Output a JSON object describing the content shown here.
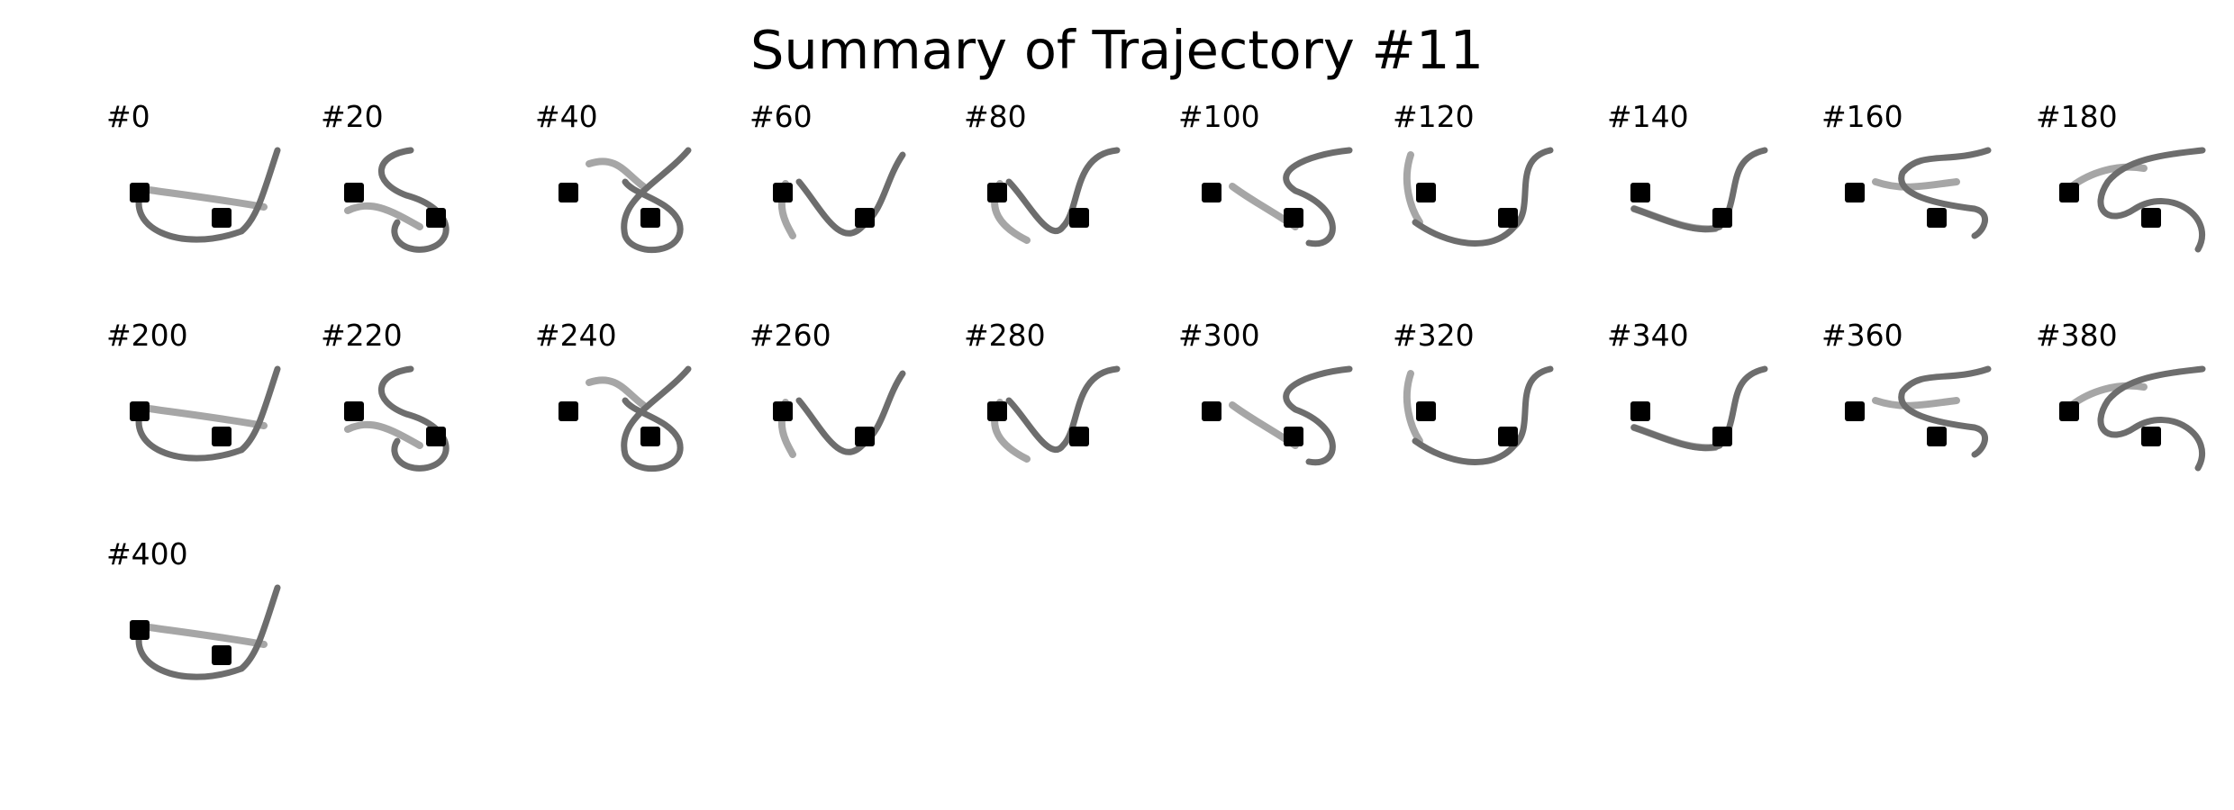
{
  "figure": {
    "title": "Summary of Trajectory #11",
    "colors": {
      "background": "#ffffff",
      "marker": "#000000",
      "stroke_dark": "#6d6d6d",
      "stroke_light": "#a6a6a6"
    },
    "columns": 10,
    "frames": [
      {
        "label": "#0"
      },
      {
        "label": "#20"
      },
      {
        "label": "#40"
      },
      {
        "label": "#60"
      },
      {
        "label": "#80"
      },
      {
        "label": "#100"
      },
      {
        "label": "#120"
      },
      {
        "label": "#140"
      },
      {
        "label": "#160"
      },
      {
        "label": "#180"
      },
      {
        "label": "#200"
      },
      {
        "label": "#220"
      },
      {
        "label": "#240"
      },
      {
        "label": "#260"
      },
      {
        "label": "#280"
      },
      {
        "label": "#300"
      },
      {
        "label": "#320"
      },
      {
        "label": "#340"
      },
      {
        "label": "#360"
      },
      {
        "label": "#380"
      },
      {
        "label": "#400"
      }
    ]
  }
}
